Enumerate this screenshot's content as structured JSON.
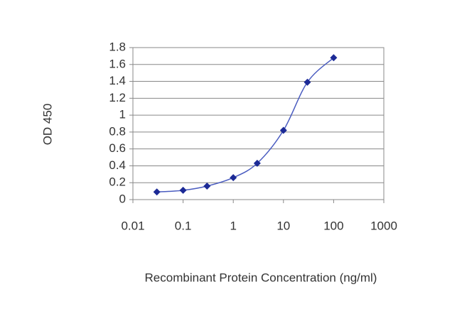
{
  "chart_data": {
    "type": "line",
    "x_label": "Recombinant Protein Concentration (ng/ml)",
    "y_label": "OD 450",
    "x": [
      0.03,
      0.1,
      0.3,
      1,
      3,
      10,
      30,
      100
    ],
    "values": [
      0.09,
      0.11,
      0.16,
      0.26,
      0.43,
      0.82,
      1.39,
      1.68
    ],
    "color": "#1c2a96",
    "xscale": "log",
    "xlim": [
      0.01,
      1000
    ],
    "xticks": [
      0.01,
      0.1,
      1,
      10,
      100,
      1000
    ],
    "ylim": [
      0,
      1.8
    ],
    "yticks": [
      0,
      0.2,
      0.4,
      0.6,
      0.8,
      1,
      1.2,
      1.4,
      1.6,
      1.8
    ],
    "grid": true
  }
}
